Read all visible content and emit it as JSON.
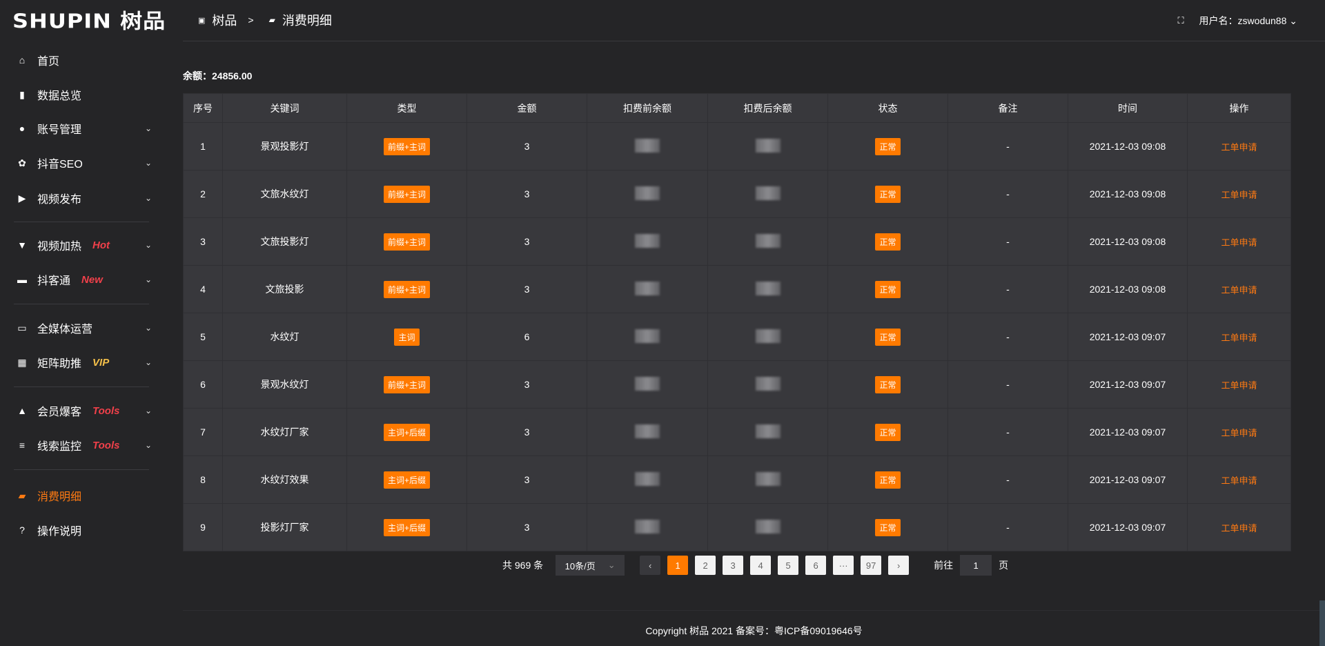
{
  "logo": {
    "text": "SHUPIN 树品"
  },
  "sidebar": {
    "items": [
      {
        "label": "首页",
        "icon": "home-icon"
      },
      {
        "label": "数据总览",
        "icon": "bar-chart-icon"
      },
      {
        "label": "账号管理",
        "icon": "user-icon",
        "chevron": true
      },
      {
        "label": "抖音SEO",
        "icon": "gear-icon",
        "chevron": true
      },
      {
        "label": "视频发布",
        "icon": "video-camera-icon",
        "chevron": true
      },
      {
        "label": "视频加热",
        "icon": "fire-sign-icon",
        "badge": "Hot",
        "badge_color": "#f0404a",
        "chevron": true
      },
      {
        "label": "抖客通",
        "icon": "chat-icon",
        "badge": "New",
        "badge_color": "#f0404a",
        "chevron": true
      },
      {
        "label": "全媒体运营",
        "icon": "monitor-icon",
        "chevron": true
      },
      {
        "label": "矩阵助推",
        "icon": "grid-icon",
        "badge": "VIP",
        "badge_color": "#f5c04a",
        "chevron": true
      },
      {
        "label": "会员爆客",
        "icon": "member-icon",
        "badge": "Tools",
        "badge_color": "#f0404a",
        "chevron": true
      },
      {
        "label": "线索监控",
        "icon": "sliders-icon",
        "badge": "Tools",
        "badge_color": "#f0404a",
        "chevron": true
      },
      {
        "label": "消费明细",
        "icon": "wallet-icon",
        "active": true
      },
      {
        "label": "操作说明",
        "icon": "help-icon"
      }
    ]
  },
  "header": {
    "breadcrumb": [
      "树品",
      "消费明细"
    ],
    "breadcrumb_sep": ">",
    "user_label": "用户名：",
    "username": "zswodun88"
  },
  "balance": {
    "label": "余额：",
    "value": "24856.00"
  },
  "table": {
    "columns": [
      "序号",
      "关键词",
      "类型",
      "金额",
      "扣费前余额",
      "扣费后余额",
      "状态",
      "备注",
      "时间",
      "操作"
    ],
    "rows": [
      {
        "no": "1",
        "keyword": "景观投影灯",
        "type": "前缀+主词",
        "amount": "3",
        "status": "正常",
        "note": "-",
        "time": "2021-12-03 09:08",
        "action": "工单申请"
      },
      {
        "no": "2",
        "keyword": "文旅水纹灯",
        "type": "前缀+主词",
        "amount": "3",
        "status": "正常",
        "note": "-",
        "time": "2021-12-03 09:08",
        "action": "工单申请"
      },
      {
        "no": "3",
        "keyword": "文旅投影灯",
        "type": "前缀+主词",
        "amount": "3",
        "status": "正常",
        "note": "-",
        "time": "2021-12-03 09:08",
        "action": "工单申请"
      },
      {
        "no": "4",
        "keyword": "文旅投影",
        "type": "前缀+主词",
        "amount": "3",
        "status": "正常",
        "note": "-",
        "time": "2021-12-03 09:08",
        "action": "工单申请"
      },
      {
        "no": "5",
        "keyword": "水纹灯",
        "type": "主词",
        "amount": "6",
        "status": "正常",
        "note": "-",
        "time": "2021-12-03 09:07",
        "action": "工单申请"
      },
      {
        "no": "6",
        "keyword": "景观水纹灯",
        "type": "前缀+主词",
        "amount": "3",
        "status": "正常",
        "note": "-",
        "time": "2021-12-03 09:07",
        "action": "工单申请"
      },
      {
        "no": "7",
        "keyword": "水纹灯厂家",
        "type": "主词+后缀",
        "amount": "3",
        "status": "正常",
        "note": "-",
        "time": "2021-12-03 09:07",
        "action": "工单申请"
      },
      {
        "no": "8",
        "keyword": "水纹灯效果",
        "type": "主词+后缀",
        "amount": "3",
        "status": "正常",
        "note": "-",
        "time": "2021-12-03 09:07",
        "action": "工单申请"
      },
      {
        "no": "9",
        "keyword": "投影灯厂家",
        "type": "主词+后缀",
        "amount": "3",
        "status": "正常",
        "note": "-",
        "time": "2021-12-03 09:07",
        "action": "工单申请"
      }
    ]
  },
  "pagination": {
    "total_text": "共 969 条",
    "page_size": "10条/页",
    "pages": [
      "1",
      "2",
      "3",
      "4",
      "5",
      "6",
      "···",
      "97"
    ],
    "current": "1",
    "goto_label": "前往",
    "goto_value": "1",
    "goto_suffix": "页"
  },
  "footer": {
    "copyright": "Copyright 树品 2021 备案号：粤ICP备09019646号"
  },
  "colors": {
    "accent": "#ff7a00",
    "background": "#252527",
    "table": "#38383c"
  }
}
